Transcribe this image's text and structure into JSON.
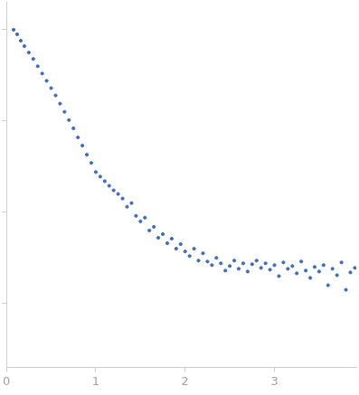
{
  "chart_data": {
    "type": "scatter",
    "color": "#3d6bbd",
    "marker": "circle",
    "tick_labels": "x",
    "grid": false,
    "xlim": [
      0,
      3.92
    ],
    "xticks": [
      0,
      1,
      2,
      3
    ],
    "ylim": [
      -0.7,
      3.3
    ],
    "yticks": [
      0,
      1,
      2,
      3
    ],
    "x": [
      0.08,
      0.12,
      0.16,
      0.2,
      0.25,
      0.3,
      0.35,
      0.4,
      0.45,
      0.5,
      0.55,
      0.6,
      0.65,
      0.7,
      0.75,
      0.8,
      0.85,
      0.9,
      0.95,
      1.0,
      1.05,
      1.1,
      1.15,
      1.2,
      1.25,
      1.3,
      1.35,
      1.4,
      1.45,
      1.5,
      1.55,
      1.6,
      1.65,
      1.7,
      1.75,
      1.8,
      1.85,
      1.9,
      1.95,
      2.0,
      2.05,
      2.1,
      2.15,
      2.2,
      2.25,
      2.3,
      2.35,
      2.4,
      2.45,
      2.5,
      2.55,
      2.6,
      2.65,
      2.7,
      2.75,
      2.8,
      2.85,
      2.9,
      2.95,
      3.0,
      3.05,
      3.1,
      3.15,
      3.2,
      3.25,
      3.3,
      3.35,
      3.4,
      3.45,
      3.5,
      3.55,
      3.6,
      3.65,
      3.7,
      3.75,
      3.8,
      3.85,
      3.9
    ],
    "values": [
      3.0,
      2.95,
      2.88,
      2.82,
      2.75,
      2.68,
      2.6,
      2.52,
      2.44,
      2.36,
      2.28,
      2.19,
      2.1,
      2.01,
      1.92,
      1.82,
      1.73,
      1.63,
      1.54,
      1.44,
      1.39,
      1.34,
      1.29,
      1.24,
      1.2,
      1.15,
      1.06,
      1.1,
      0.96,
      0.9,
      0.94,
      0.8,
      0.84,
      0.72,
      0.76,
      0.66,
      0.71,
      0.6,
      0.65,
      0.57,
      0.52,
      0.6,
      0.47,
      0.55,
      0.46,
      0.42,
      0.5,
      0.44,
      0.36,
      0.41,
      0.47,
      0.38,
      0.44,
      0.35,
      0.43,
      0.47,
      0.39,
      0.44,
      0.37,
      0.42,
      0.3,
      0.45,
      0.38,
      0.41,
      0.33,
      0.46,
      0.36,
      0.28,
      0.4,
      0.35,
      0.42,
      0.2,
      0.38,
      0.31,
      0.45,
      0.15,
      0.34,
      0.39
    ]
  }
}
